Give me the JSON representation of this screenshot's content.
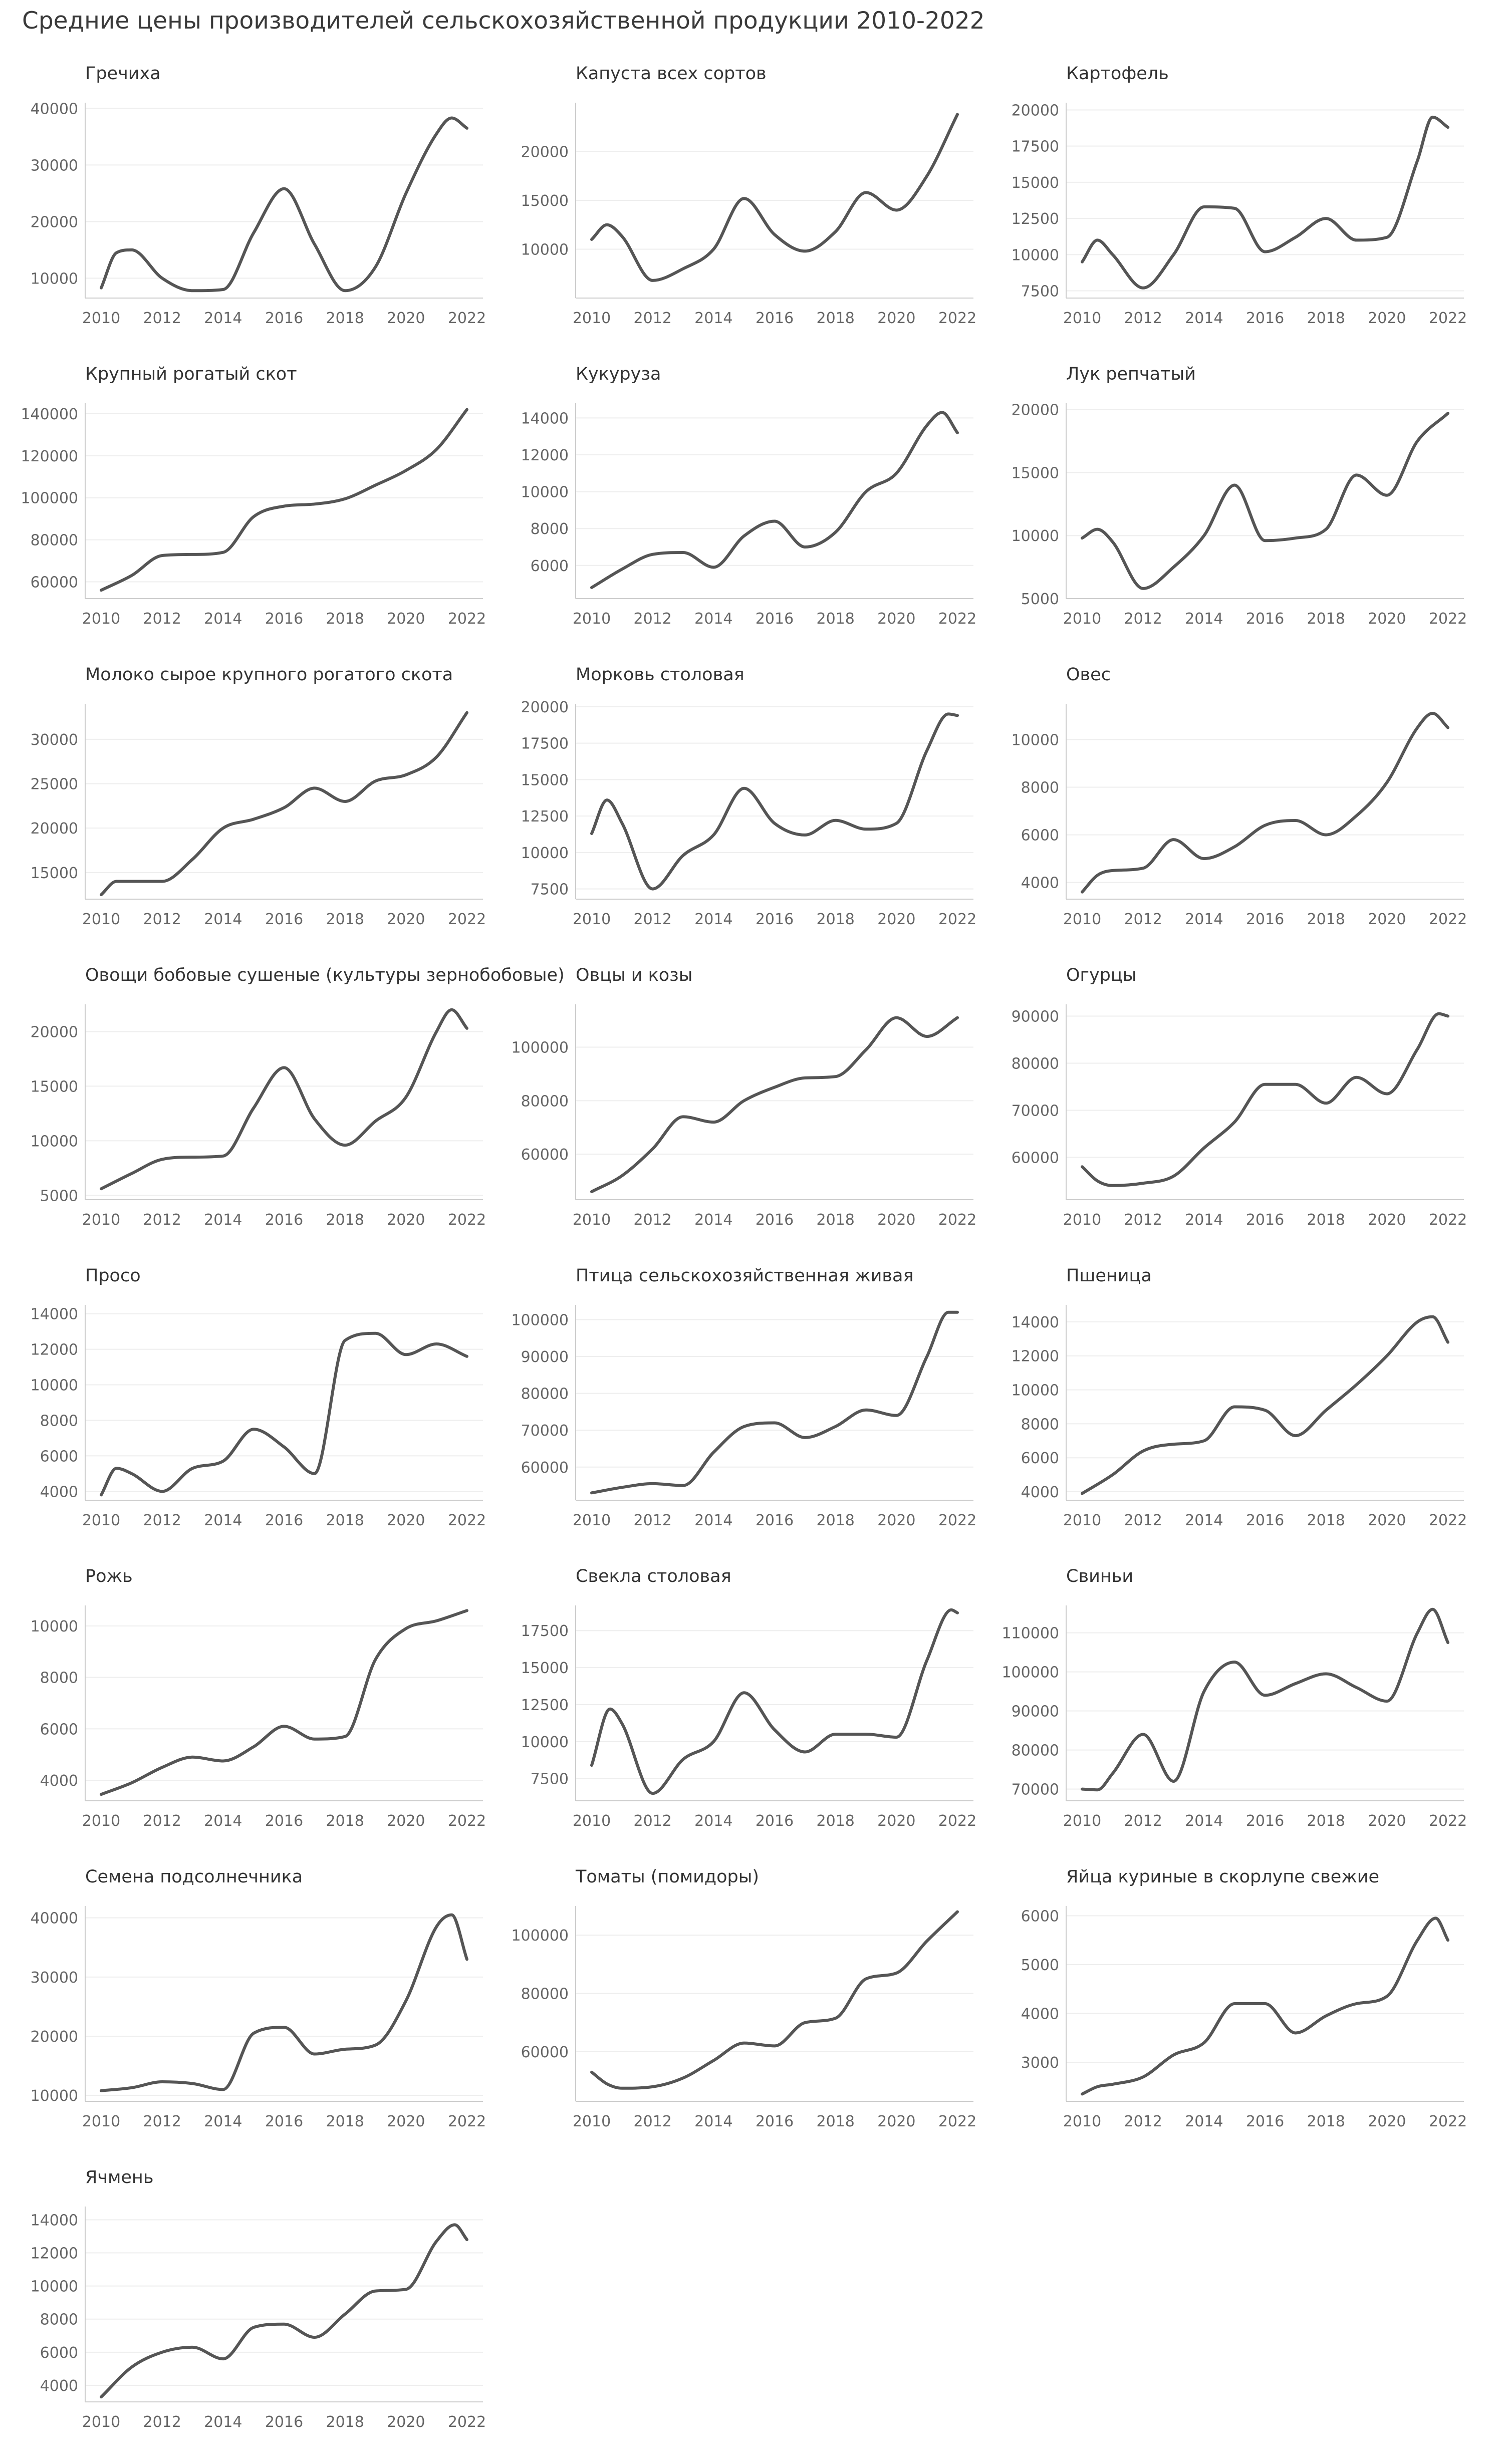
{
  "title": "Средние цены производителей сельскохозяйственной продукции 2010-2022",
  "colors": {
    "line": "#555555",
    "axis": "#cccccc",
    "grid": "#eeeeee",
    "tick_text": "#666666",
    "title_text": "#333333"
  },
  "chart_data": [
    {
      "type": "line",
      "title": "Гречиха",
      "xlim": [
        2010,
        2022
      ],
      "ylim": [
        6500,
        41000
      ],
      "yticks": [
        10000,
        20000,
        30000,
        40000
      ],
      "x": [
        2010,
        2010.5,
        2011,
        2012,
        2013,
        2014,
        2015,
        2016,
        2017,
        2018,
        2019,
        2020,
        2021,
        2021.5,
        2022
      ],
      "values": [
        8300,
        14500,
        15000,
        10000,
        7800,
        8000,
        18000,
        25800,
        16000,
        7800,
        12000,
        25000,
        35500,
        38300,
        36500
      ]
    },
    {
      "type": "line",
      "title": "Капуста всех сортов",
      "xlim": [
        2010,
        2022
      ],
      "ylim": [
        5000,
        25000
      ],
      "yticks": [
        10000,
        15000,
        20000
      ],
      "x": [
        2010,
        2010.5,
        2011,
        2012,
        2013,
        2014,
        2015,
        2016,
        2017,
        2018,
        2019,
        2020,
        2021,
        2022
      ],
      "values": [
        11000,
        12500,
        11300,
        6800,
        8000,
        10000,
        15200,
        11500,
        9800,
        11800,
        15800,
        14000,
        17500,
        23800
      ]
    },
    {
      "type": "line",
      "title": "Картофель",
      "xlim": [
        2010,
        2022
      ],
      "ylim": [
        7000,
        20500
      ],
      "yticks": [
        7500,
        10000,
        12500,
        15000,
        17500,
        20000
      ],
      "x": [
        2010,
        2010.5,
        2011,
        2012,
        2013,
        2014,
        2015,
        2016,
        2017,
        2018,
        2019,
        2020,
        2021,
        2021.5,
        2022
      ],
      "values": [
        9500,
        11000,
        10000,
        7700,
        10000,
        13300,
        13200,
        10200,
        11200,
        12500,
        11000,
        11200,
        16500,
        19500,
        18800
      ]
    },
    {
      "type": "line",
      "title": "Крупный рогатый скот",
      "xlim": [
        2010,
        2022
      ],
      "ylim": [
        52000,
        145000
      ],
      "yticks": [
        60000,
        80000,
        100000,
        120000,
        140000
      ],
      "x": [
        2010,
        2011,
        2012,
        2013,
        2014,
        2015,
        2016,
        2017,
        2018,
        2019,
        2020,
        2021,
        2022
      ],
      "values": [
        56000,
        63000,
        72500,
        73000,
        74000,
        91000,
        96000,
        97000,
        99500,
        106000,
        113000,
        123000,
        142000
      ]
    },
    {
      "type": "line",
      "title": "Кукуруза",
      "xlim": [
        2010,
        2022
      ],
      "ylim": [
        4200,
        14800
      ],
      "yticks": [
        6000,
        8000,
        10000,
        12000,
        14000
      ],
      "x": [
        2010,
        2011,
        2012,
        2013,
        2014,
        2015,
        2016,
        2017,
        2018,
        2019,
        2020,
        2021,
        2021.5,
        2022
      ],
      "values": [
        4800,
        5800,
        6600,
        6700,
        5900,
        7600,
        8400,
        7000,
        7800,
        10000,
        11000,
        13600,
        14300,
        13200
      ]
    },
    {
      "type": "line",
      "title": "Лук репчатый",
      "xlim": [
        2010,
        2022
      ],
      "ylim": [
        5000,
        20500
      ],
      "yticks": [
        5000,
        10000,
        15000,
        20000
      ],
      "x": [
        2010,
        2010.5,
        2011,
        2012,
        2013,
        2014,
        2015,
        2016,
        2017,
        2018,
        2019,
        2020,
        2021,
        2022
      ],
      "values": [
        9800,
        10500,
        9500,
        5800,
        7500,
        10000,
        14000,
        9600,
        9800,
        10500,
        14800,
        13200,
        17500,
        19700
      ]
    },
    {
      "type": "line",
      "title": "Молоко сырое крупного рогатого скота",
      "xlim": [
        2010,
        2022
      ],
      "ylim": [
        12000,
        34000
      ],
      "yticks": [
        15000,
        20000,
        25000,
        30000
      ],
      "x": [
        2010,
        2010.5,
        2011,
        2012,
        2013,
        2014,
        2015,
        2016,
        2017,
        2018,
        2019,
        2020,
        2021,
        2022
      ],
      "values": [
        12500,
        14000,
        14000,
        14000,
        16500,
        20000,
        21000,
        22300,
        24500,
        23000,
        25300,
        26000,
        28000,
        33000
      ]
    },
    {
      "type": "line",
      "title": "Морковь столовая",
      "xlim": [
        2010,
        2022
      ],
      "ylim": [
        6800,
        20200
      ],
      "yticks": [
        7500,
        10000,
        12500,
        15000,
        17500,
        20000
      ],
      "x": [
        2010,
        2010.5,
        2011,
        2012,
        2013,
        2014,
        2015,
        2016,
        2017,
        2018,
        2019,
        2020,
        2021,
        2021.7,
        2022
      ],
      "values": [
        11300,
        13600,
        12000,
        7500,
        9800,
        11200,
        14400,
        12000,
        11200,
        12200,
        11600,
        12000,
        17000,
        19500,
        19400
      ]
    },
    {
      "type": "line",
      "title": "Овес",
      "xlim": [
        2010,
        2022
      ],
      "ylim": [
        3300,
        11500
      ],
      "yticks": [
        4000,
        6000,
        8000,
        10000
      ],
      "x": [
        2010,
        2010.5,
        2011,
        2012,
        2013,
        2014,
        2015,
        2016,
        2017,
        2018,
        2019,
        2020,
        2021,
        2021.5,
        2022
      ],
      "values": [
        3600,
        4300,
        4500,
        4600,
        5800,
        5000,
        5500,
        6400,
        6600,
        6000,
        6800,
        8200,
        10500,
        11100,
        10500
      ]
    },
    {
      "type": "line",
      "title": "Овощи бобовые сушеные (культуры зернобобовые)",
      "xlim": [
        2010,
        2022
      ],
      "ylim": [
        4600,
        22500
      ],
      "yticks": [
        5000,
        10000,
        15000,
        20000
      ],
      "x": [
        2010,
        2011,
        2012,
        2013,
        2014,
        2015,
        2016,
        2017,
        2018,
        2019,
        2020,
        2021,
        2021.5,
        2022
      ],
      "values": [
        5600,
        7000,
        8300,
        8500,
        8600,
        13000,
        16700,
        12000,
        9600,
        11800,
        14000,
        20000,
        22000,
        20300
      ]
    },
    {
      "type": "line",
      "title": "Овцы и козы",
      "xlim": [
        2010,
        2022
      ],
      "ylim": [
        43000,
        116000
      ],
      "yticks": [
        60000,
        80000,
        100000
      ],
      "x": [
        2010,
        2011,
        2012,
        2013,
        2014,
        2015,
        2016,
        2017,
        2018,
        2019,
        2020,
        2021,
        2022
      ],
      "values": [
        46000,
        52000,
        62000,
        74000,
        72000,
        80000,
        85000,
        88500,
        89000,
        99000,
        111000,
        104000,
        111000
      ]
    },
    {
      "type": "line",
      "title": "Огурцы",
      "xlim": [
        2010,
        2022
      ],
      "ylim": [
        51000,
        92500
      ],
      "yticks": [
        60000,
        70000,
        80000,
        90000
      ],
      "x": [
        2010,
        2010.5,
        2011,
        2012,
        2013,
        2014,
        2015,
        2016,
        2017,
        2018,
        2019,
        2020,
        2021,
        2021.7,
        2022
      ],
      "values": [
        58000,
        55000,
        54000,
        54500,
        56000,
        62000,
        67500,
        75500,
        75500,
        71500,
        77000,
        73500,
        83000,
        90500,
        90000
      ]
    },
    {
      "type": "line",
      "title": "Просо",
      "xlim": [
        2010,
        2022
      ],
      "ylim": [
        3500,
        14500
      ],
      "yticks": [
        4000,
        6000,
        8000,
        10000,
        12000,
        14000
      ],
      "x": [
        2010,
        2010.5,
        2011,
        2012,
        2013,
        2014,
        2015,
        2016,
        2017,
        2018,
        2019,
        2020,
        2021,
        2022
      ],
      "values": [
        3800,
        5300,
        5000,
        4000,
        5300,
        5700,
        7500,
        6500,
        5000,
        12500,
        12900,
        11700,
        12300,
        11600
      ]
    },
    {
      "type": "line",
      "title": "Птица сельскохозяйственная живая",
      "xlim": [
        2010,
        2022
      ],
      "ylim": [
        51000,
        104000
      ],
      "yticks": [
        60000,
        70000,
        80000,
        90000,
        100000
      ],
      "x": [
        2010,
        2011,
        2012,
        2013,
        2014,
        2015,
        2016,
        2017,
        2018,
        2019,
        2020,
        2021,
        2021.7,
        2022
      ],
      "values": [
        53000,
        54500,
        55500,
        55000,
        64000,
        71000,
        72000,
        68000,
        71000,
        75500,
        74000,
        90000,
        102000,
        102000
      ]
    },
    {
      "type": "line",
      "title": "Пшеница",
      "xlim": [
        2010,
        2022
      ],
      "ylim": [
        3500,
        15000
      ],
      "yticks": [
        4000,
        6000,
        8000,
        10000,
        12000,
        14000
      ],
      "x": [
        2010,
        2011,
        2012,
        2013,
        2014,
        2015,
        2016,
        2017,
        2018,
        2019,
        2020,
        2021,
        2021.5,
        2022
      ],
      "values": [
        3900,
        5000,
        6400,
        6800,
        7000,
        9000,
        8800,
        7300,
        8800,
        10300,
        12000,
        14000,
        14300,
        12800
      ]
    },
    {
      "type": "line",
      "title": "Рожь",
      "xlim": [
        2010,
        2022
      ],
      "ylim": [
        3200,
        10800
      ],
      "yticks": [
        4000,
        6000,
        8000,
        10000
      ],
      "x": [
        2010,
        2011,
        2012,
        2013,
        2014,
        2015,
        2016,
        2017,
        2018,
        2019,
        2020,
        2021,
        2022
      ],
      "values": [
        3450,
        3900,
        4500,
        4900,
        4750,
        5300,
        6100,
        5600,
        5700,
        8700,
        9900,
        10200,
        10600
      ]
    },
    {
      "type": "line",
      "title": "Свекла столовая",
      "xlim": [
        2010,
        2022
      ],
      "ylim": [
        6000,
        19200
      ],
      "yticks": [
        7500,
        10000,
        12500,
        15000,
        17500
      ],
      "x": [
        2010,
        2010.6,
        2011,
        2012,
        2013,
        2014,
        2015,
        2016,
        2017,
        2018,
        2019,
        2020,
        2021,
        2021.8,
        2022
      ],
      "values": [
        8400,
        12200,
        11200,
        6500,
        8800,
        10000,
        13300,
        10800,
        9300,
        10500,
        10500,
        10300,
        15500,
        18900,
        18700
      ]
    },
    {
      "type": "line",
      "title": "Свиньи",
      "xlim": [
        2010,
        2022
      ],
      "ylim": [
        67000,
        117000
      ],
      "yticks": [
        70000,
        80000,
        90000,
        100000,
        110000
      ],
      "x": [
        2010,
        2010.5,
        2011,
        2012,
        2013,
        2014,
        2015,
        2016,
        2017,
        2018,
        2019,
        2020,
        2021,
        2021.5,
        2022
      ],
      "values": [
        70000,
        69800,
        74000,
        84000,
        72000,
        95000,
        102500,
        94000,
        97000,
        99500,
        96000,
        92500,
        110000,
        116000,
        107500
      ]
    },
    {
      "type": "line",
      "title": "Семена подсолнечника",
      "xlim": [
        2010,
        2022
      ],
      "ylim": [
        9000,
        42000
      ],
      "yticks": [
        10000,
        20000,
        30000,
        40000
      ],
      "x": [
        2010,
        2011,
        2012,
        2013,
        2014,
        2015,
        2016,
        2017,
        2018,
        2019,
        2020,
        2021,
        2021.5,
        2022
      ],
      "values": [
        10800,
        11300,
        12300,
        12000,
        11000,
        20500,
        21500,
        17000,
        17800,
        18500,
        26000,
        38500,
        40500,
        33000
      ]
    },
    {
      "type": "line",
      "title": "Томаты (помидоры)",
      "xlim": [
        2010,
        2022
      ],
      "ylim": [
        43000,
        110000
      ],
      "yticks": [
        60000,
        80000,
        100000
      ],
      "x": [
        2010,
        2010.5,
        2011,
        2012,
        2013,
        2014,
        2015,
        2016,
        2017,
        2018,
        2019,
        2020,
        2021,
        2022
      ],
      "values": [
        53000,
        49000,
        47500,
        48000,
        51000,
        57000,
        63000,
        62000,
        70000,
        71500,
        85000,
        87000,
        98000,
        108000
      ]
    },
    {
      "type": "line",
      "title": "Яйца куриные в скорлупе свежие",
      "xlim": [
        2010,
        2022
      ],
      "ylim": [
        2200,
        6200
      ],
      "yticks": [
        3000,
        4000,
        5000,
        6000
      ],
      "x": [
        2010,
        2010.5,
        2011,
        2012,
        2013,
        2014,
        2015,
        2016,
        2017,
        2018,
        2019,
        2020,
        2021,
        2021.6,
        2022
      ],
      "values": [
        2350,
        2500,
        2550,
        2700,
        3150,
        3400,
        4200,
        4200,
        3600,
        3950,
        4200,
        4350,
        5500,
        5950,
        5500
      ]
    },
    {
      "type": "line",
      "title": "Ячмень",
      "xlim": [
        2010,
        2022
      ],
      "ylim": [
        3000,
        14800
      ],
      "yticks": [
        4000,
        6000,
        8000,
        10000,
        12000,
        14000
      ],
      "x": [
        2010,
        2011,
        2012,
        2013,
        2014,
        2015,
        2016,
        2017,
        2018,
        2019,
        2020,
        2021,
        2021.6,
        2022
      ],
      "values": [
        3300,
        5100,
        6000,
        6300,
        5600,
        7500,
        7700,
        6900,
        8300,
        9700,
        9800,
        12700,
        13700,
        12800
      ]
    }
  ]
}
